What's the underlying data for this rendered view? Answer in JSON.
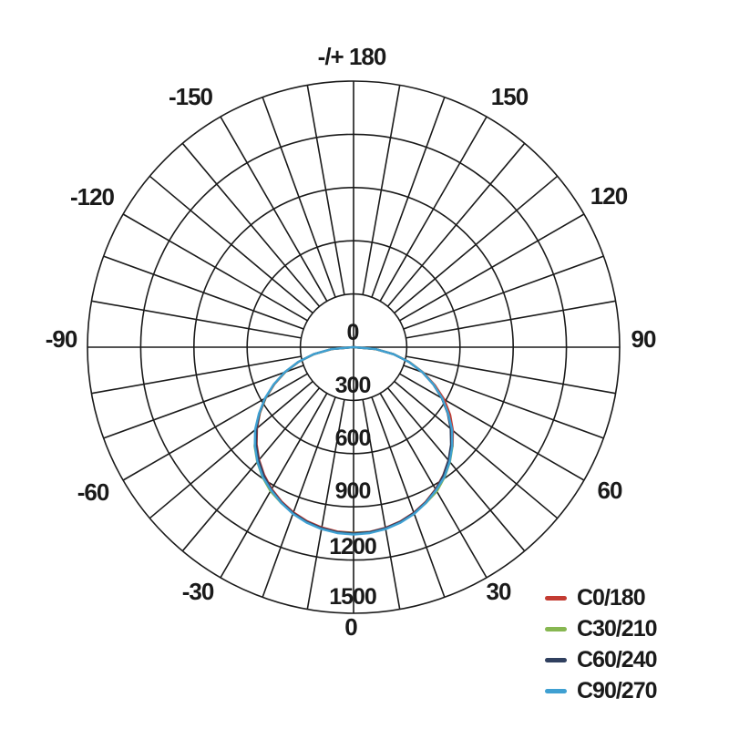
{
  "page": {
    "background_color": "#ffffff",
    "grid_color": "#1a1a1a"
  },
  "chart_data": {
    "type": "polar-line",
    "subtype": "photometric-light-distribution",
    "title": "",
    "orientation": {
      "zero_angle_position": "bottom",
      "plus_minus_180_position": "top",
      "angle_unit": "degrees"
    },
    "radial_axis": {
      "min": 0,
      "max": 1500,
      "step": 300,
      "tick_labels": [
        "0",
        "300",
        "600",
        "900",
        "1200",
        "1500"
      ]
    },
    "angular_axis": {
      "grid_step_deg": 10,
      "label_step_deg": 30,
      "labels": [
        "-/+ 180",
        "-150",
        "150",
        "-120",
        "120",
        "-90",
        "90",
        "-60",
        "60",
        "-30",
        "30",
        "0"
      ]
    },
    "bottom_zero_label": "0",
    "angles_deg": [
      -90,
      -85,
      -80,
      -75,
      -70,
      -65,
      -60,
      -55,
      -50,
      -45,
      -40,
      -35,
      -30,
      -25,
      -20,
      -15,
      -10,
      -5,
      0,
      5,
      10,
      15,
      20,
      25,
      30,
      35,
      40,
      45,
      50,
      55,
      60,
      65,
      70,
      75,
      80,
      85,
      90
    ],
    "series": [
      {
        "name": "C0/180",
        "color": "#c33b32",
        "values": [
          2,
          122,
          225,
          320,
          409,
          492,
          571,
          644,
          711,
          773,
          829,
          879,
          923,
          960,
          991,
          1015,
          1032,
          1043,
          1046,
          1045,
          1034,
          1017,
          993,
          962,
          925,
          881,
          833,
          790,
          731,
          665,
          590,
          505,
          418,
          327,
          231,
          127,
          2
        ]
      },
      {
        "name": "C30/210",
        "color": "#87b751",
        "values": [
          2,
          124,
          227,
          322,
          411,
          494,
          573,
          646,
          717,
          789,
          845,
          895,
          937,
          968,
          997,
          1020,
          1037,
          1047,
          1048,
          1047,
          1037,
          1020,
          997,
          968,
          939,
          895,
          845,
          789,
          719,
          650,
          577,
          498,
          415,
          326,
          231,
          127,
          2
        ]
      },
      {
        "name": "C60/240",
        "color": "#30405f",
        "values": [
          2,
          126,
          229,
          324,
          413,
          496,
          575,
          648,
          715,
          777,
          833,
          883,
          927,
          964,
          995,
          1019,
          1036,
          1047,
          1050,
          1047,
          1036,
          1019,
          995,
          964,
          927,
          883,
          833,
          777,
          715,
          648,
          575,
          496,
          413,
          324,
          229,
          126,
          2
        ]
      },
      {
        "name": "C90/270",
        "color": "#3fa0d2",
        "values": [
          2,
          126,
          230,
          325,
          414,
          497,
          577,
          651,
          725,
          787,
          843,
          893,
          931,
          967,
          1000,
          1024,
          1041,
          1052,
          1056,
          1052,
          1041,
          1024,
          1000,
          967,
          931,
          893,
          843,
          787,
          725,
          651,
          577,
          497,
          414,
          325,
          230,
          126,
          2
        ]
      }
    ],
    "legend": {
      "position": "bottom-right",
      "entries": [
        "C0/180",
        "C30/210",
        "C60/240",
        "C90/270"
      ]
    }
  }
}
